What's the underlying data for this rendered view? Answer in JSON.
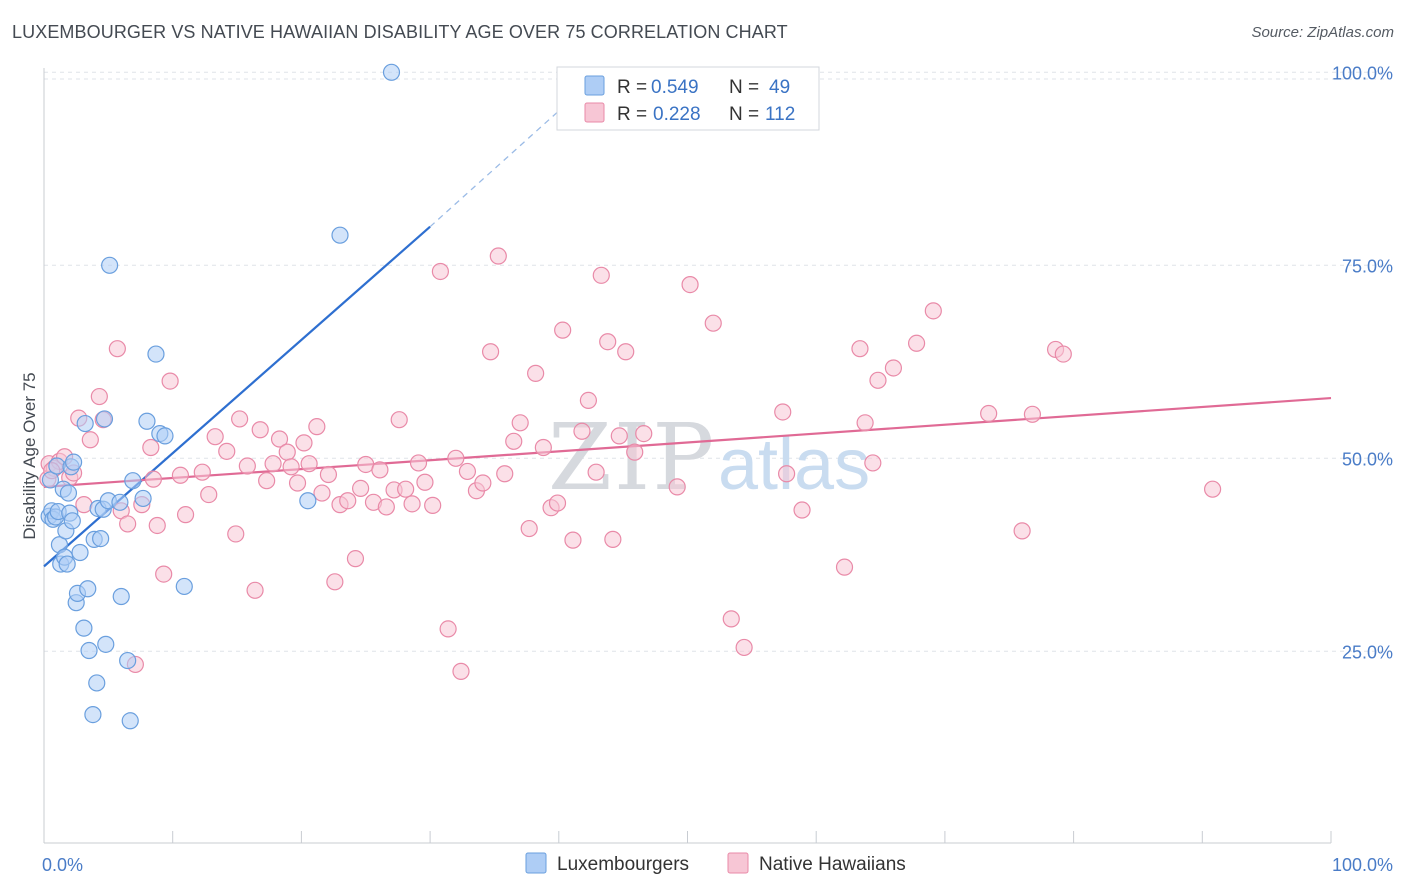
{
  "title": "LUXEMBOURGER VS NATIVE HAWAIIAN DISABILITY AGE OVER 75 CORRELATION CHART",
  "source": "Source: ZipAtlas.com",
  "watermark": {
    "zip": "ZIP",
    "atlas": "atlas"
  },
  "colors": {
    "blue_fill": "#aecdf5",
    "blue_stroke": "#6a9fde",
    "blue_line": "#2e6fd0",
    "pink_fill": "#f7c6d5",
    "pink_stroke": "#e98aa8",
    "pink_line": "#e06a95",
    "grid": "#dfe3e8",
    "tick_text": "#4a7cc7"
  },
  "chart_data": {
    "type": "scatter",
    "title": "LUXEMBOURGER VS NATIVE HAWAIIAN DISABILITY AGE OVER 75 CORRELATION CHART",
    "xlabel": "",
    "ylabel": "Disability Age Over 75",
    "xlim": [
      0,
      100
    ],
    "ylim": [
      0,
      104
    ],
    "x_tick_labels": [
      "0.0%",
      "100.0%"
    ],
    "y_ticks": [
      25,
      50,
      75,
      100
    ],
    "y_tick_labels": [
      "25.0%",
      "50.0%",
      "75.0%",
      "100.0%"
    ],
    "grid": true,
    "legend_placement": "top-center",
    "legend": [
      {
        "name": "Luxembourgers",
        "r_label": "R =",
        "r": "0.549",
        "n_label": "N =",
        "n": "49"
      },
      {
        "name": "Native Hawaiians",
        "r_label": "R =",
        "r": "0.228",
        "n_label": "N =",
        "n": "112"
      }
    ],
    "series": [
      {
        "name": "Luxembourgers",
        "trend": {
          "x": [
            0,
            30
          ],
          "y": [
            36,
            80
          ],
          "dashed_to": [
            40,
            95
          ]
        },
        "points": [
          [
            0.4,
            42.5
          ],
          [
            0.5,
            47.2
          ],
          [
            0.6,
            43.2
          ],
          [
            0.7,
            42.1
          ],
          [
            0.9,
            42.4
          ],
          [
            1.0,
            49.0
          ],
          [
            1.1,
            43.1
          ],
          [
            1.2,
            38.8
          ],
          [
            1.3,
            36.3
          ],
          [
            1.5,
            46.0
          ],
          [
            1.6,
            37.2
          ],
          [
            1.7,
            40.6
          ],
          [
            1.8,
            36.3
          ],
          [
            1.9,
            45.5
          ],
          [
            2.0,
            42.9
          ],
          [
            2.1,
            48.9
          ],
          [
            2.2,
            41.9
          ],
          [
            2.3,
            49.5
          ],
          [
            2.5,
            31.3
          ],
          [
            2.6,
            32.5
          ],
          [
            2.8,
            37.8
          ],
          [
            3.1,
            28.0
          ],
          [
            3.2,
            54.5
          ],
          [
            3.4,
            33.1
          ],
          [
            3.5,
            25.1
          ],
          [
            3.8,
            16.8
          ],
          [
            3.9,
            39.5
          ],
          [
            4.1,
            20.9
          ],
          [
            4.2,
            43.5
          ],
          [
            4.4,
            39.6
          ],
          [
            4.6,
            43.4
          ],
          [
            4.7,
            55.1
          ],
          [
            4.8,
            25.9
          ],
          [
            5.0,
            44.5
          ],
          [
            5.1,
            75.0
          ],
          [
            5.9,
            44.3
          ],
          [
            6.0,
            32.1
          ],
          [
            6.5,
            23.8
          ],
          [
            6.7,
            16.0
          ],
          [
            6.9,
            47.1
          ],
          [
            7.7,
            44.8
          ],
          [
            8.0,
            54.8
          ],
          [
            8.7,
            63.5
          ],
          [
            9.0,
            53.2
          ],
          [
            9.4,
            52.9
          ],
          [
            10.9,
            33.4
          ],
          [
            20.5,
            44.5
          ],
          [
            23.0,
            78.9
          ],
          [
            27.0,
            100.0
          ]
        ]
      },
      {
        "name": "Native Hawaiians",
        "trend": {
          "x": [
            0,
            100
          ],
          "y": [
            46.3,
            57.8
          ]
        },
        "points": [
          [
            0.3,
            47.3
          ],
          [
            0.4,
            49.3
          ],
          [
            0.8,
            48.7
          ],
          [
            1.2,
            49.6
          ],
          [
            1.6,
            50.2
          ],
          [
            2.0,
            47.5
          ],
          [
            2.3,
            48.1
          ],
          [
            2.7,
            55.2
          ],
          [
            3.1,
            44.0
          ],
          [
            3.6,
            52.4
          ],
          [
            4.3,
            58.0
          ],
          [
            4.6,
            55.0
          ],
          [
            5.7,
            64.2
          ],
          [
            6.0,
            43.2
          ],
          [
            6.5,
            41.5
          ],
          [
            7.1,
            23.3
          ],
          [
            7.6,
            44.0
          ],
          [
            8.3,
            51.4
          ],
          [
            8.5,
            47.3
          ],
          [
            8.8,
            41.3
          ],
          [
            9.3,
            35.0
          ],
          [
            9.8,
            60.0
          ],
          [
            10.6,
            47.8
          ],
          [
            11.0,
            42.7
          ],
          [
            12.3,
            48.2
          ],
          [
            12.8,
            45.3
          ],
          [
            13.3,
            52.8
          ],
          [
            14.2,
            50.9
          ],
          [
            14.9,
            40.2
          ],
          [
            15.2,
            55.1
          ],
          [
            15.8,
            49.0
          ],
          [
            16.4,
            32.9
          ],
          [
            16.8,
            53.7
          ],
          [
            17.3,
            47.1
          ],
          [
            17.8,
            49.3
          ],
          [
            18.3,
            52.5
          ],
          [
            18.9,
            50.8
          ],
          [
            19.2,
            48.9
          ],
          [
            19.7,
            46.8
          ],
          [
            20.2,
            52.0
          ],
          [
            20.6,
            49.3
          ],
          [
            21.2,
            54.1
          ],
          [
            21.6,
            45.5
          ],
          [
            22.1,
            47.9
          ],
          [
            22.6,
            34.0
          ],
          [
            23.0,
            44.0
          ],
          [
            23.6,
            44.5
          ],
          [
            24.2,
            37.0
          ],
          [
            24.6,
            46.1
          ],
          [
            25.0,
            49.2
          ],
          [
            25.6,
            44.3
          ],
          [
            26.1,
            48.5
          ],
          [
            26.6,
            43.7
          ],
          [
            27.2,
            45.9
          ],
          [
            27.6,
            55.0
          ],
          [
            28.1,
            46.0
          ],
          [
            28.6,
            44.1
          ],
          [
            29.1,
            49.4
          ],
          [
            29.6,
            46.9
          ],
          [
            30.2,
            43.9
          ],
          [
            30.8,
            74.2
          ],
          [
            31.4,
            27.9
          ],
          [
            32.0,
            50.0
          ],
          [
            32.4,
            22.4
          ],
          [
            32.9,
            48.3
          ],
          [
            33.6,
            45.8
          ],
          [
            34.1,
            46.8
          ],
          [
            34.7,
            63.8
          ],
          [
            35.3,
            76.2
          ],
          [
            35.8,
            48.0
          ],
          [
            36.5,
            52.2
          ],
          [
            37.0,
            54.6
          ],
          [
            37.7,
            40.9
          ],
          [
            38.2,
            61.0
          ],
          [
            38.8,
            51.4
          ],
          [
            39.4,
            43.6
          ],
          [
            39.9,
            44.2
          ],
          [
            40.3,
            66.6
          ],
          [
            41.1,
            39.4
          ],
          [
            41.8,
            53.5
          ],
          [
            42.3,
            57.5
          ],
          [
            42.9,
            48.2
          ],
          [
            43.3,
            73.7
          ],
          [
            43.8,
            65.1
          ],
          [
            44.2,
            39.5
          ],
          [
            44.7,
            52.9
          ],
          [
            45.2,
            63.8
          ],
          [
            45.9,
            50.8
          ],
          [
            46.6,
            53.2
          ],
          [
            49.2,
            46.3
          ],
          [
            50.2,
            72.5
          ],
          [
            52.0,
            67.5
          ],
          [
            53.4,
            29.2
          ],
          [
            54.4,
            25.5
          ],
          [
            57.4,
            56.0
          ],
          [
            57.7,
            48.0
          ],
          [
            58.9,
            43.3
          ],
          [
            62.2,
            35.9
          ],
          [
            63.4,
            64.2
          ],
          [
            63.8,
            54.6
          ],
          [
            64.4,
            49.4
          ],
          [
            64.8,
            60.1
          ],
          [
            66.0,
            61.7
          ],
          [
            67.8,
            64.9
          ],
          [
            69.1,
            69.1
          ],
          [
            73.4,
            55.8
          ],
          [
            76.0,
            40.6
          ],
          [
            76.8,
            55.7
          ],
          [
            78.6,
            64.1
          ],
          [
            79.2,
            63.5
          ],
          [
            90.8,
            46.0
          ],
          [
            0.6,
            48.4
          ]
        ]
      }
    ]
  }
}
